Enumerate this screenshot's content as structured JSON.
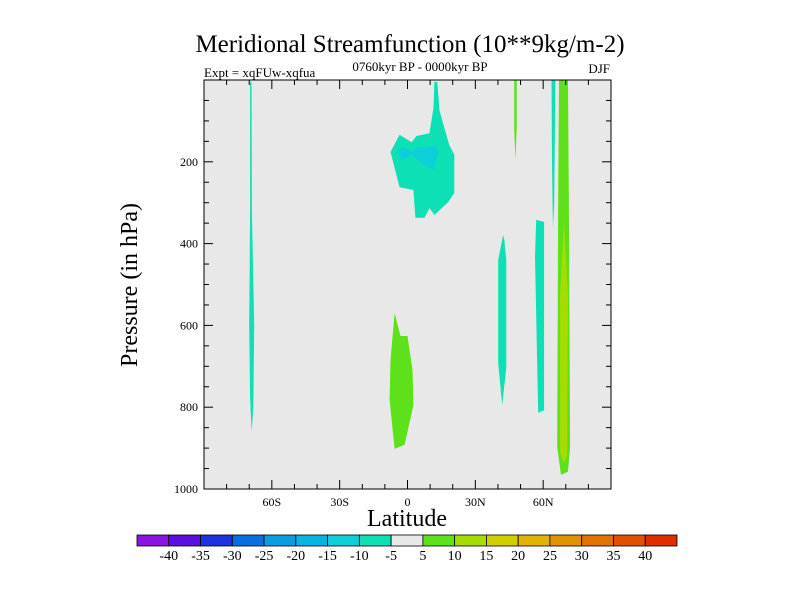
{
  "chart_data": {
    "type": "heatmap",
    "subtype": "filled-contour",
    "title": "Meridional Streamfunction (10**9kg/m-2)",
    "left_subtitle": "Expt = xqFUw-xqfua",
    "center_subtitle": "0760kyr BP - 0000kyr BP",
    "right_subtitle": "DJF",
    "xlabel": "Latitude",
    "ylabel": "Pressure (in hPa)",
    "xlim": [
      -90,
      90
    ],
    "ylim": [
      0,
      1000
    ],
    "y_inverted": true,
    "x_ticks": [
      {
        "value": -60,
        "label": "60S"
      },
      {
        "value": -30,
        "label": "30S"
      },
      {
        "value": 0,
        "label": "0"
      },
      {
        "value": 30,
        "label": "30N"
      },
      {
        "value": 60,
        "label": "60N"
      }
    ],
    "x_minor_step": 10,
    "y_ticks": [
      {
        "value": 200,
        "label": "200"
      },
      {
        "value": 400,
        "label": "400"
      },
      {
        "value": 600,
        "label": "600"
      },
      {
        "value": 800,
        "label": "800"
      },
      {
        "value": 1000,
        "label": "1000"
      }
    ],
    "y_minor_step": 50,
    "background_color": "#e8e8e8",
    "colorbar": {
      "levels": [
        -40,
        -35,
        -30,
        -25,
        -20,
        -15,
        -10,
        -5,
        5,
        10,
        15,
        20,
        25,
        30,
        35,
        40
      ],
      "colors": [
        "#8a14e0",
        "#5a0ee0",
        "#1e32e0",
        "#0a6ee0",
        "#0a9ee0",
        "#0ab4e0",
        "#0ccfd8",
        "#0ce0b4",
        "#e8e8e8",
        "#5ee01a",
        "#a6dc00",
        "#d0d000",
        "#e0b400",
        "#e09400",
        "#e07400",
        "#e05000",
        "#e02c00"
      ]
    },
    "regions": [
      {
        "name": "sh-polar-negative",
        "range": "-10 to -5",
        "color": "#0ce0b4",
        "points": [
          [
            -69.6,
            5
          ],
          [
            -69.0,
            5
          ],
          [
            -68.8,
            320
          ],
          [
            -67.8,
            600
          ],
          [
            -68.2,
            800
          ],
          [
            -68.9,
            860
          ],
          [
            -69.6,
            780
          ],
          [
            -70.0,
            600
          ],
          [
            -69.6,
            320
          ]
        ]
      },
      {
        "name": "upper-tropical-negative",
        "range": "-10 to -5",
        "color": "#0ce0b4",
        "points": [
          [
            11.9,
            5
          ],
          [
            13.2,
            5
          ],
          [
            14.1,
            73
          ],
          [
            15.9,
            110
          ],
          [
            18.5,
            159
          ],
          [
            20.7,
            183
          ],
          [
            20.7,
            276
          ],
          [
            18.1,
            298
          ],
          [
            11.9,
            330
          ],
          [
            9.7,
            313
          ],
          [
            7.5,
            337
          ],
          [
            3.5,
            337
          ],
          [
            2.6,
            269
          ],
          [
            -3.5,
            262
          ],
          [
            -7.5,
            176
          ],
          [
            -3.5,
            134
          ],
          [
            1.8,
            152
          ],
          [
            4.0,
            137
          ],
          [
            9.7,
            130
          ],
          [
            11.5,
            68
          ]
        ]
      },
      {
        "name": "upper-tropical-core",
        "range": "-15 to -10",
        "color": "#0ccfd8",
        "points": [
          [
            -4.4,
            171
          ],
          [
            -2.6,
            196
          ],
          [
            1.8,
            183
          ],
          [
            6.2,
            203
          ],
          [
            11.5,
            220
          ],
          [
            13.7,
            176
          ],
          [
            11.9,
            159
          ],
          [
            8.4,
            166
          ],
          [
            4.9,
            164
          ],
          [
            1.8,
            174
          ],
          [
            -1.8,
            164
          ]
        ]
      },
      {
        "name": "lower-tropical-positive",
        "range": "5 to 10",
        "color": "#5ee01a",
        "points": [
          [
            -5.7,
            570
          ],
          [
            -7.5,
            685
          ],
          [
            -7.9,
            782
          ],
          [
            -5.7,
            902
          ],
          [
            -1.3,
            892
          ],
          [
            2.6,
            795
          ],
          [
            2.2,
            709
          ],
          [
            0,
            626
          ],
          [
            -3.1,
            626
          ]
        ]
      },
      {
        "name": "nh-40n-negative",
        "range": "-10 to -5",
        "color": "#0ce0b4",
        "points": [
          [
            42.3,
            379
          ],
          [
            40.1,
            440
          ],
          [
            40.1,
            692
          ],
          [
            41.9,
            795
          ],
          [
            43.7,
            702
          ],
          [
            43.7,
            440
          ],
          [
            42.8,
            391
          ]
        ]
      },
      {
        "name": "nh-57n-negative",
        "range": "-10 to -5",
        "color": "#0ce0b4",
        "points": [
          [
            56.9,
            342
          ],
          [
            60.4,
            347
          ],
          [
            60.4,
            807
          ],
          [
            57.8,
            814
          ],
          [
            56.4,
            433
          ]
        ]
      },
      {
        "name": "nh-47n-positive",
        "range": "5 to 10",
        "color": "#5ee01a",
        "points": [
          [
            47.2,
            0
          ],
          [
            48.3,
            0
          ],
          [
            48.3,
            120
          ],
          [
            47.7,
            195
          ],
          [
            47.2,
            120
          ]
        ]
      },
      {
        "name": "nh-64n-negative",
        "range": "-10 to -5",
        "color": "#0ce0b4",
        "points": [
          [
            63.7,
            0
          ],
          [
            65.4,
            0
          ],
          [
            64.9,
            300
          ],
          [
            64.3,
            362
          ],
          [
            63.9,
            200
          ]
        ]
      },
      {
        "name": "nh-69n-positive",
        "range": "5 to 10",
        "color": "#5ee01a",
        "points": [
          [
            67.0,
            0
          ],
          [
            71.0,
            0
          ],
          [
            71.4,
            325
          ],
          [
            71.9,
            897
          ],
          [
            71.0,
            958
          ],
          [
            67.9,
            965
          ],
          [
            66.2,
            897
          ],
          [
            66.6,
            325
          ]
        ]
      },
      {
        "name": "nh-69n-core",
        "range": "10 to 15",
        "color": "#a6dc00",
        "points": [
          [
            69.2,
            342
          ],
          [
            71.0,
            530
          ],
          [
            70.6,
            919
          ],
          [
            69.2,
            936
          ],
          [
            67.5,
            912
          ],
          [
            67.5,
            530
          ]
        ]
      }
    ]
  }
}
